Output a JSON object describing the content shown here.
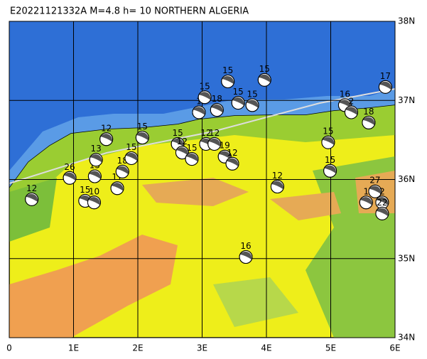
{
  "chart_data": {
    "type": "map",
    "title": "E20221121332A M=4.8 h= 10 NORTHERN ALGERIA",
    "xlim": [
      0,
      6
    ],
    "ylim": [
      34,
      38
    ],
    "xticks": [
      0,
      {
        "value": 1,
        "label": "1E"
      },
      {
        "value": 2,
        "label": "2E"
      },
      {
        "value": 3,
        "label": "3E"
      },
      {
        "value": 4,
        "label": "4E"
      },
      {
        "value": 5,
        "label": "5E"
      },
      {
        "value": 6,
        "label": "6E"
      }
    ],
    "yticks": [
      {
        "value": 34,
        "label": "34N"
      },
      {
        "value": 35,
        "label": "35N"
      },
      {
        "value": 36,
        "label": "36N"
      },
      {
        "value": 37,
        "label": "37N"
      },
      {
        "value": 38,
        "label": "38N"
      }
    ],
    "grid": true,
    "events": [
      {
        "lon": 0.35,
        "lat": 35.75,
        "depth": 12
      },
      {
        "lon": 0.94,
        "lat": 36.02,
        "depth": 26
      },
      {
        "lon": 1.18,
        "lat": 35.73,
        "depth": 15
      },
      {
        "lon": 1.32,
        "lat": 35.71,
        "depth": 10
      },
      {
        "lon": 1.33,
        "lat": 36.04,
        "depth": 15
      },
      {
        "lon": 1.35,
        "lat": 36.25,
        "depth": 13
      },
      {
        "lon": 1.51,
        "lat": 36.51,
        "depth": 12
      },
      {
        "lon": 1.68,
        "lat": 35.89,
        "depth": 17
      },
      {
        "lon": 1.76,
        "lat": 36.1,
        "depth": 18
      },
      {
        "lon": 1.9,
        "lat": 36.27,
        "depth": 15
      },
      {
        "lon": 2.07,
        "lat": 36.53,
        "depth": 15
      },
      {
        "lon": 2.62,
        "lat": 36.45,
        "depth": 15
      },
      {
        "lon": 2.69,
        "lat": 36.34,
        "depth": 12
      },
      {
        "lon": 2.84,
        "lat": 36.26,
        "depth": 15
      },
      {
        "lon": 3.06,
        "lat": 36.45,
        "depth": 12
      },
      {
        "lon": 3.19,
        "lat": 36.45,
        "depth": 12
      },
      {
        "lon": 3.35,
        "lat": 36.29,
        "depth": 19
      },
      {
        "lon": 3.47,
        "lat": 36.2,
        "depth": 12
      },
      {
        "lon": 2.95,
        "lat": 36.85,
        "depth": 1
      },
      {
        "lon": 3.04,
        "lat": 37.04,
        "depth": 15
      },
      {
        "lon": 3.23,
        "lat": 36.88,
        "depth": 18
      },
      {
        "lon": 3.4,
        "lat": 37.24,
        "depth": 15
      },
      {
        "lon": 3.56,
        "lat": 36.97,
        "depth": 15
      },
      {
        "lon": 3.78,
        "lat": 36.94,
        "depth": 15
      },
      {
        "lon": 3.97,
        "lat": 37.26,
        "depth": 15
      },
      {
        "lon": 3.68,
        "lat": 35.02,
        "depth": 16
      },
      {
        "lon": 4.17,
        "lat": 35.91,
        "depth": 12
      },
      {
        "lon": 4.96,
        "lat": 36.47,
        "depth": 15
      },
      {
        "lon": 4.99,
        "lat": 36.11,
        "depth": 15
      },
      {
        "lon": 5.22,
        "lat": 36.94,
        "depth": 16
      },
      {
        "lon": 5.32,
        "lat": 36.85,
        "depth": 2
      },
      {
        "lon": 5.59,
        "lat": 36.72,
        "depth": 18
      },
      {
        "lon": 5.85,
        "lat": 37.17,
        "depth": 17
      },
      {
        "lon": 5.69,
        "lat": 35.85,
        "depth": 27
      },
      {
        "lon": 5.55,
        "lat": 35.71,
        "depth": 1
      },
      {
        "lon": 5.8,
        "lat": 35.71,
        "depth": 2
      },
      {
        "lon": 5.8,
        "lat": 35.57,
        "depth": 22
      }
    ]
  }
}
